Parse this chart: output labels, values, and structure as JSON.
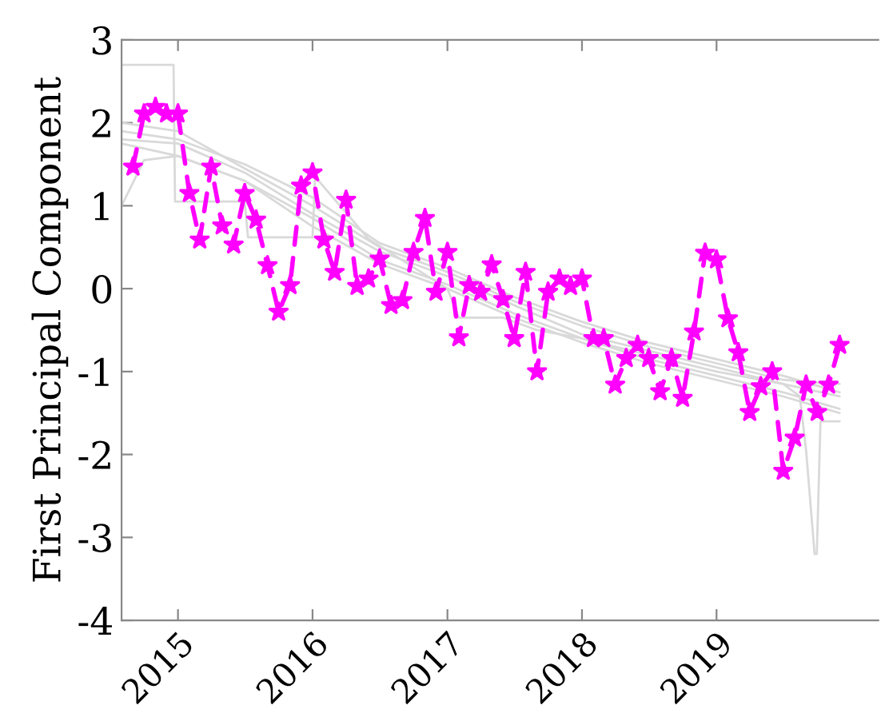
{
  "chart_data": {
    "type": "line",
    "ylabel": "First Principal Component",
    "xlim": [
      "2014-08-01",
      "2020-03-15"
    ],
    "ylim": [
      -4,
      3
    ],
    "yticks": [
      3,
      2,
      1,
      0,
      -1,
      -2,
      -3,
      -4
    ],
    "xticks": [
      {
        "value": "2015-01-01",
        "label": "2015"
      },
      {
        "value": "2016-01-01",
        "label": "2016"
      },
      {
        "value": "2017-01-01",
        "label": "2017"
      },
      {
        "value": "2018-01-01",
        "label": "2018"
      },
      {
        "value": "2019-01-01",
        "label": "2019"
      }
    ],
    "grid": false,
    "legend": false,
    "series": [
      {
        "color": "#d9d9d9",
        "line_style": "solid",
        "marker": "none",
        "x": [
          "2014-08-01",
          "2014-12-20",
          "2014-12-24",
          "2015-07-01",
          "2015-07-10",
          "2016-01-01",
          "2016-01-08",
          "2016-06-01",
          "2017-01-01",
          "2017-02-01",
          "2017-06-01",
          "2017-09-01",
          "2018-01-01",
          "2018-07-01",
          "2019-01-01",
          "2019-07-01",
          "2019-12-01"
        ],
        "values": [
          2.7,
          2.7,
          1.05,
          1.05,
          0.62,
          0.62,
          1.35,
          0.6,
          0.0,
          -0.35,
          -0.35,
          -0.5,
          -0.6,
          -0.8,
          -1.0,
          -1.15,
          -1.3
        ]
      },
      {
        "color": "#d9d9d9",
        "line_style": "solid",
        "marker": "none",
        "x": [
          "2014-08-01",
          "2015-01-01",
          "2015-07-01",
          "2016-01-01",
          "2016-07-01",
          "2017-01-01",
          "2017-07-01",
          "2018-01-01",
          "2018-07-01",
          "2019-01-01",
          "2019-07-01",
          "2019-08-15",
          "2019-09-01",
          "2019-09-24",
          "2019-09-30",
          "2019-10-10",
          "2019-12-01"
        ],
        "values": [
          1.8,
          1.75,
          1.4,
          0.9,
          0.45,
          0.15,
          -0.2,
          -0.55,
          -0.75,
          -0.95,
          -1.15,
          -1.3,
          -1.95,
          -3.2,
          -3.2,
          -1.6,
          -1.6
        ]
      },
      {
        "color": "#d9d9d9",
        "line_style": "solid",
        "marker": "none",
        "x": [
          "2014-08-01",
          "2014-10-01",
          "2015-01-01",
          "2015-07-01",
          "2016-01-01",
          "2016-07-01",
          "2017-01-01",
          "2017-07-01",
          "2018-01-01",
          "2018-07-01",
          "2019-01-01",
          "2019-07-01",
          "2019-12-01"
        ],
        "values": [
          1.0,
          1.55,
          1.6,
          1.3,
          0.85,
          0.35,
          0.05,
          -0.3,
          -0.6,
          -0.85,
          -1.05,
          -1.25,
          -1.45
        ]
      },
      {
        "color": "#d9d9d9",
        "line_style": "solid",
        "marker": "none",
        "x": [
          "2014-08-01",
          "2015-01-01",
          "2015-07-01",
          "2016-01-01",
          "2016-07-01",
          "2017-01-01",
          "2017-07-01",
          "2018-01-01",
          "2018-07-01",
          "2019-01-01",
          "2019-07-01",
          "2019-12-01"
        ],
        "values": [
          2.0,
          1.9,
          1.45,
          1.0,
          0.5,
          0.2,
          -0.15,
          -0.45,
          -0.7,
          -0.9,
          -1.1,
          -1.15
        ]
      },
      {
        "color": "#d9d9d9",
        "line_style": "solid",
        "marker": "none",
        "x": [
          "2014-08-01",
          "2015-01-01",
          "2015-07-01",
          "2016-01-01",
          "2016-07-01",
          "2017-01-01",
          "2017-07-01",
          "2018-01-01",
          "2018-07-01",
          "2019-01-01",
          "2019-07-01",
          "2019-12-01"
        ],
        "values": [
          1.75,
          1.6,
          1.3,
          0.75,
          0.3,
          0.0,
          -0.35,
          -0.65,
          -0.9,
          -1.1,
          -1.3,
          -1.5
        ]
      },
      {
        "color": "#d9d9d9",
        "line_style": "solid",
        "marker": "none",
        "x": [
          "2014-08-01",
          "2015-01-01",
          "2015-07-01",
          "2016-01-01",
          "2016-07-01",
          "2017-01-01",
          "2017-07-01",
          "2018-01-01",
          "2018-07-01",
          "2019-01-01",
          "2019-07-01",
          "2019-12-01"
        ],
        "values": [
          1.9,
          1.8,
          1.5,
          1.1,
          0.55,
          0.25,
          -0.1,
          -0.4,
          -0.65,
          -0.85,
          -1.05,
          -1.25
        ]
      },
      {
        "color": "#ff00ff",
        "line_style": "dashed",
        "marker": "star",
        "x": [
          "2014-09",
          "2014-10",
          "2014-11",
          "2014-12",
          "2015-01",
          "2015-02",
          "2015-03",
          "2015-04",
          "2015-05",
          "2015-06",
          "2015-07",
          "2015-08",
          "2015-09",
          "2015-10",
          "2015-11",
          "2015-12",
          "2016-01",
          "2016-02",
          "2016-03",
          "2016-04",
          "2016-05",
          "2016-06",
          "2016-07",
          "2016-08",
          "2016-09",
          "2016-10",
          "2016-11",
          "2016-12",
          "2017-01",
          "2017-02",
          "2017-03",
          "2017-04",
          "2017-05",
          "2017-06",
          "2017-07",
          "2017-08",
          "2017-09",
          "2017-10",
          "2017-11",
          "2017-12",
          "2018-01",
          "2018-02",
          "2018-03",
          "2018-04",
          "2018-05",
          "2018-06",
          "2018-07",
          "2018-08",
          "2018-09",
          "2018-10",
          "2018-11",
          "2018-12",
          "2019-01",
          "2019-02",
          "2019-03",
          "2019-04",
          "2019-05",
          "2019-06",
          "2019-07",
          "2019-08",
          "2019-09",
          "2019-10",
          "2019-11",
          "2019-12"
        ],
        "values": [
          1.47,
          2.11,
          2.19,
          2.11,
          2.11,
          1.15,
          0.59,
          1.47,
          0.76,
          0.53,
          1.15,
          0.83,
          0.28,
          -0.28,
          0.04,
          1.24,
          1.4,
          0.59,
          0.2,
          1.07,
          0.03,
          0.12,
          0.36,
          -0.2,
          -0.14,
          0.44,
          0.85,
          -0.04,
          0.44,
          -0.59,
          0.04,
          -0.04,
          0.29,
          -0.13,
          -0.6,
          0.2,
          -1.0,
          -0.04,
          0.12,
          0.03,
          0.12,
          -0.6,
          -0.6,
          -1.16,
          -0.84,
          -0.68,
          -0.84,
          -1.24,
          -0.84,
          -1.32,
          -0.52,
          0.43,
          0.35,
          -0.36,
          -0.77,
          -1.49,
          -1.18,
          -1.0,
          -2.2,
          -1.8,
          -1.16,
          -1.49,
          -1.16,
          -0.68
        ]
      }
    ]
  }
}
